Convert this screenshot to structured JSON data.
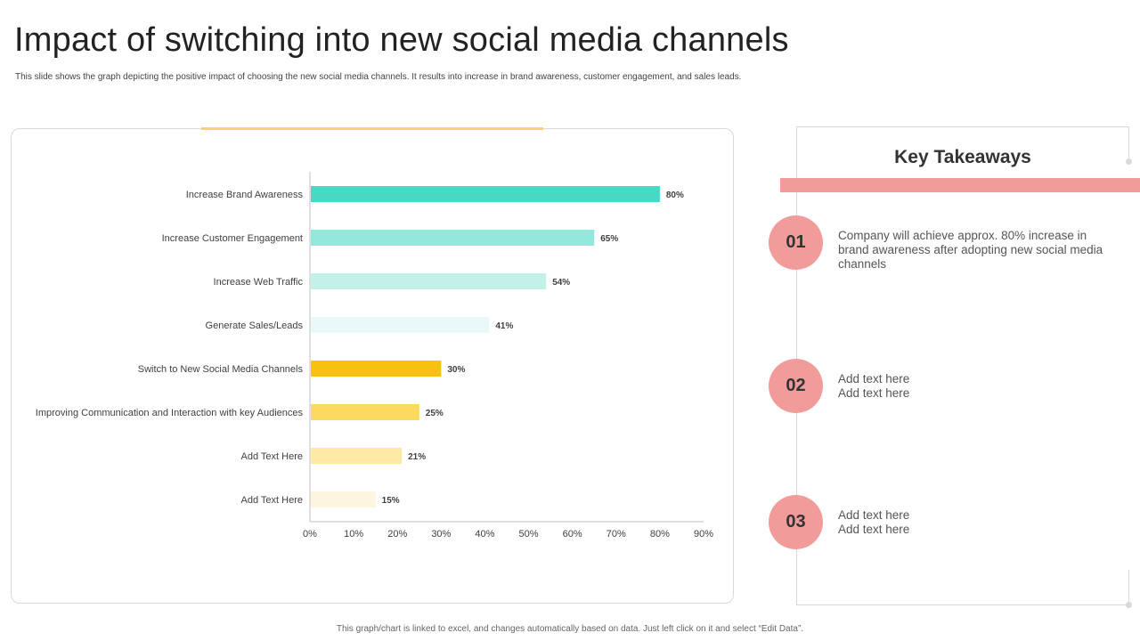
{
  "page": {
    "title": "Impact of switching into new social media channels",
    "subtitle": "This slide shows the graph depicting the positive impact of choosing the new social media channels. It results into increase in brand awareness, customer engagement, and sales leads.",
    "footer": "This graph/chart is linked to excel, and changes automatically based on data. Just left click on it and select “Edit Data”."
  },
  "chart_data": {
    "type": "bar",
    "orientation": "horizontal",
    "categories": [
      "Increase Brand Awareness",
      "Increase Customer Engagement",
      "Increase Web Traffic",
      "Generate Sales/Leads",
      "Switch to New Social Media Channels",
      "Improving Communication and Interaction with key Audiences",
      "Add Text Here",
      "Add Text Here"
    ],
    "values": [
      80,
      65,
      54,
      41,
      30,
      25,
      21,
      15
    ],
    "data_labels": [
      "80%",
      "65%",
      "54%",
      "41%",
      "30%",
      "25%",
      "21%",
      "15%"
    ],
    "colors": [
      "#48d9c4",
      "#92e8dc",
      "#c2f1ea",
      "#eaf9f7",
      "#f7c20f",
      "#fbd85f",
      "#fde8a4",
      "#fef5df"
    ],
    "x_ticks": [
      "0%",
      "10%",
      "20%",
      "30%",
      "40%",
      "50%",
      "60%",
      "70%",
      "80%",
      "90%"
    ],
    "xlim": [
      0,
      90
    ],
    "grid": false,
    "legend": "none"
  },
  "takeaways": {
    "title": "Key Takeaways",
    "accent_color": "#f19c9a",
    "items": [
      {
        "number": "01",
        "lines": [
          "Company will achieve approx. 80% increase in brand awareness after adopting new social media channels"
        ]
      },
      {
        "number": "02",
        "lines": [
          "Add text here",
          "Add text here"
        ]
      },
      {
        "number": "03",
        "lines": [
          "Add text here",
          "Add text here"
        ]
      }
    ]
  }
}
